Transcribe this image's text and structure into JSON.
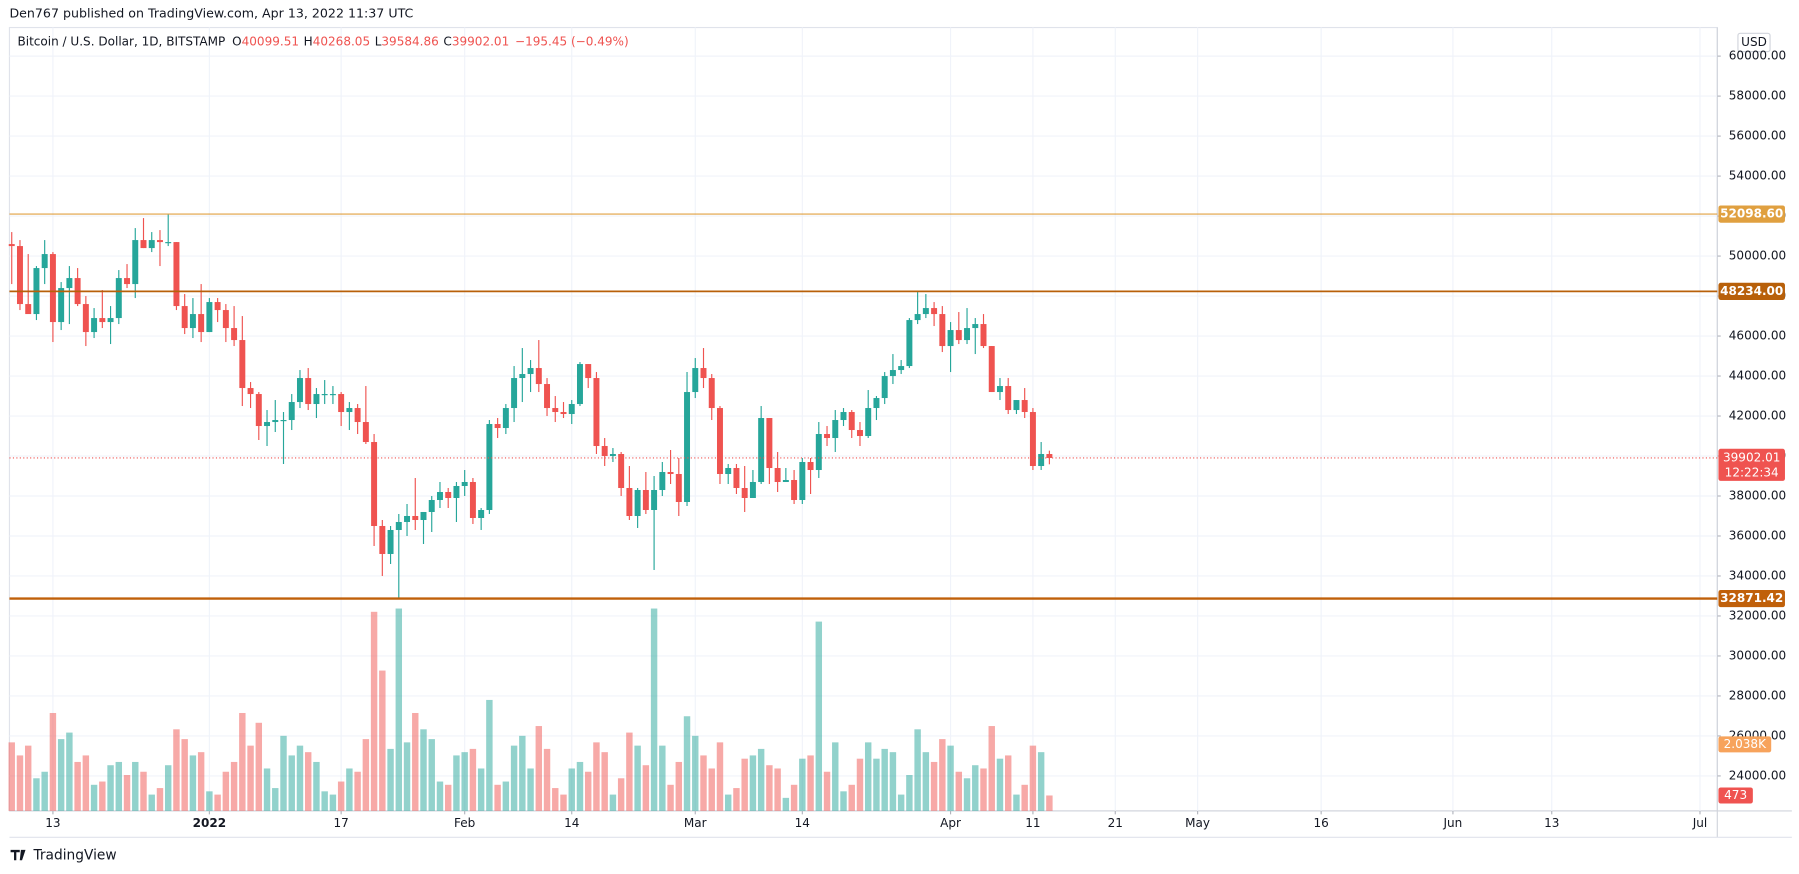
{
  "header": {
    "publisher": "Den767 published on TradingView.com, Apr 13, 2022 11:37 UTC",
    "brand": "TradingView"
  },
  "chart_data": {
    "type": "candlestick",
    "legend": {
      "symbol": "Bitcoin / U.S. Dollar, 1D, BITSTAMP",
      "items": [
        {
          "key": "O",
          "value": "40099.51"
        },
        {
          "key": "H",
          "value": "40268.05"
        },
        {
          "key": "L",
          "value": "39584.86"
        },
        {
          "key": "C",
          "value": "39902.01"
        }
      ],
      "change": "−195.45 (−0.49%)"
    },
    "currency": "USD",
    "up_color": "#26a69a",
    "down_color": "#ef5350",
    "x": [
      "2021-12-08",
      "2021-12-09",
      "2021-12-10",
      "2021-12-11",
      "2021-12-12",
      "2021-12-13",
      "2021-12-14",
      "2021-12-15",
      "2021-12-16",
      "2021-12-17",
      "2021-12-18",
      "2021-12-19",
      "2021-12-20",
      "2021-12-21",
      "2021-12-22",
      "2021-12-23",
      "2021-12-24",
      "2021-12-25",
      "2021-12-26",
      "2021-12-27",
      "2021-12-28",
      "2021-12-29",
      "2021-12-30",
      "2021-12-31",
      "2022-01-01",
      "2022-01-02",
      "2022-01-03",
      "2022-01-04",
      "2022-01-05",
      "2022-01-06",
      "2022-01-07",
      "2022-01-08",
      "2022-01-09",
      "2022-01-10",
      "2022-01-11",
      "2022-01-12",
      "2022-01-13",
      "2022-01-14",
      "2022-01-15",
      "2022-01-16",
      "2022-01-17",
      "2022-01-18",
      "2022-01-19",
      "2022-01-20",
      "2022-01-21",
      "2022-01-22",
      "2022-01-23",
      "2022-01-24",
      "2022-01-25",
      "2022-01-26",
      "2022-01-27",
      "2022-01-28",
      "2022-01-29",
      "2022-01-30",
      "2022-01-31",
      "2022-02-01",
      "2022-02-02",
      "2022-02-03",
      "2022-02-04",
      "2022-02-05",
      "2022-02-06",
      "2022-02-07",
      "2022-02-08",
      "2022-02-09",
      "2022-02-10",
      "2022-02-11",
      "2022-02-12",
      "2022-02-13",
      "2022-02-14",
      "2022-02-15",
      "2022-02-16",
      "2022-02-17",
      "2022-02-18",
      "2022-02-19",
      "2022-02-20",
      "2022-02-21",
      "2022-02-22",
      "2022-02-23",
      "2022-02-24",
      "2022-02-25",
      "2022-02-26",
      "2022-02-27",
      "2022-02-28",
      "2022-03-01",
      "2022-03-02",
      "2022-03-03",
      "2022-03-04",
      "2022-03-05",
      "2022-03-06",
      "2022-03-07",
      "2022-03-08",
      "2022-03-09",
      "2022-03-10",
      "2022-03-11",
      "2022-03-12",
      "2022-03-13",
      "2022-03-14",
      "2022-03-15",
      "2022-03-16",
      "2022-03-17",
      "2022-03-18",
      "2022-03-19",
      "2022-03-20",
      "2022-03-21",
      "2022-03-22",
      "2022-03-23",
      "2022-03-24",
      "2022-03-25",
      "2022-03-26",
      "2022-03-27",
      "2022-03-28",
      "2022-03-29",
      "2022-03-30",
      "2022-03-31",
      "2022-04-01",
      "2022-04-02",
      "2022-04-03",
      "2022-04-04",
      "2022-04-05",
      "2022-04-06",
      "2022-04-07",
      "2022-04-08",
      "2022-04-09",
      "2022-04-10",
      "2022-04-11",
      "2022-04-12",
      "2022-04-13"
    ],
    "open": [
      50600,
      50500,
      47600,
      47100,
      49400,
      50100,
      46700,
      48400,
      48900,
      47600,
      46200,
      46900,
      46700,
      46900,
      48900,
      48600,
      50800,
      50400,
      50800,
      50700,
      50700,
      47500,
      46400,
      47100,
      46200,
      47700,
      47300,
      46400,
      45800,
      43400,
      43100,
      41500,
      41700,
      41800,
      41800,
      42700,
      43900,
      42600,
      43100,
      43100,
      43100,
      42200,
      42400,
      41700,
      40700,
      36500,
      35100,
      36300,
      36700,
      37000,
      36800,
      37200,
      37800,
      38200,
      37900,
      38500,
      38700,
      36900,
      37300,
      41600,
      41400,
      42400,
      43900,
      44100,
      44400,
      43600,
      42400,
      42200,
      42100,
      42600,
      44600,
      43900,
      40500,
      40000,
      40100,
      38400,
      37000,
      38300,
      37300,
      38300,
      39200,
      39100,
      37700,
      43200,
      44400,
      43900,
      42400,
      39100,
      39400,
      38400,
      37900,
      38700,
      41900,
      39400,
      38700,
      38800,
      37800,
      39700,
      39300,
      41100,
      40900,
      41800,
      42200,
      41300,
      41000,
      42400,
      42900,
      44000,
      44300,
      44500,
      46800,
      47100,
      47400,
      47100,
      45500,
      46300,
      45800,
      46400,
      46600,
      45500,
      43200,
      43500,
      42300,
      42800,
      42200,
      39500,
      40099.51
    ],
    "high": [
      51200,
      50800,
      50100,
      49500,
      50800,
      50200,
      48700,
      49500,
      49400,
      48000,
      47400,
      48300,
      47500,
      49300,
      49600,
      51400,
      51900,
      51200,
      51300,
      52100,
      50700,
      48100,
      47900,
      48600,
      47900,
      47900,
      47600,
      47500,
      47000,
      43700,
      43200,
      42300,
      42800,
      42200,
      43100,
      44300,
      44400,
      43400,
      43800,
      43500,
      43200,
      42700,
      42600,
      43500,
      41100,
      36800,
      36500,
      37100,
      37600,
      38900,
      37200,
      38000,
      38700,
      38400,
      38700,
      39300,
      38900,
      37400,
      41800,
      41900,
      42600,
      44500,
      45400,
      44800,
      45800,
      43900,
      43000,
      42700,
      42800,
      44700,
      44600,
      44200,
      40900,
      40400,
      40200,
      39500,
      38400,
      39200,
      39000,
      39700,
      40300,
      39900,
      44200,
      44900,
      45400,
      44100,
      42500,
      39600,
      39600,
      39500,
      39300,
      42500,
      41900,
      40200,
      39400,
      39300,
      39900,
      39900,
      41700,
      41500,
      42300,
      42400,
      42300,
      41700,
      43300,
      43000,
      44200,
      45100,
      44800,
      46900,
      48200,
      48100,
      47700,
      47500,
      46700,
      47200,
      47400,
      46900,
      47100,
      45500,
      43900,
      43900,
      42800,
      43400,
      42400,
      40700,
      40268.05
    ],
    "low": [
      48600,
      47300,
      47300,
      46800,
      48600,
      45700,
      46300,
      46600,
      47500,
      45500,
      45900,
      46400,
      45600,
      46600,
      48400,
      47900,
      50400,
      50200,
      49500,
      50500,
      47300,
      46100,
      45900,
      45700,
      46200,
      46700,
      45700,
      45500,
      42500,
      42400,
      40800,
      40500,
      41200,
      39600,
      41300,
      42400,
      42300,
      41900,
      42600,
      42600,
      41500,
      41300,
      41100,
      40600,
      35500,
      34000,
      34600,
      32900,
      36000,
      36300,
      35600,
      36200,
      37400,
      37400,
      36700,
      38000,
      36600,
      36300,
      37100,
      40900,
      41100,
      41700,
      42700,
      43200,
      43200,
      42000,
      41700,
      41900,
      41600,
      42500,
      43400,
      40100,
      39500,
      39700,
      38000,
      36800,
      36400,
      37100,
      34300,
      38000,
      38600,
      37000,
      37500,
      42900,
      43400,
      41800,
      38600,
      38600,
      38100,
      37200,
      37900,
      38600,
      38600,
      38200,
      38700,
      37600,
      37600,
      38100,
      38900,
      40500,
      40200,
      41500,
      40900,
      40500,
      40900,
      41800,
      42600,
      43600,
      44100,
      44400,
      46600,
      46900,
      46500,
      45200,
      44200,
      45600,
      45600,
      45100,
      45400,
      43200,
      42800,
      42100,
      42100,
      41900,
      39300,
      39300,
      39584.86
    ],
    "close": [
      50500,
      47600,
      47100,
      49400,
      50100,
      46700,
      48400,
      48900,
      47600,
      46200,
      46900,
      46700,
      46900,
      48900,
      48600,
      50800,
      50400,
      50800,
      50700,
      50700,
      47500,
      46400,
      47100,
      46200,
      47700,
      47300,
      46400,
      45800,
      43400,
      43100,
      41500,
      41700,
      41800,
      41800,
      42700,
      43900,
      42600,
      43100,
      43100,
      43100,
      42200,
      42400,
      41700,
      40700,
      36500,
      35100,
      36300,
      36700,
      37000,
      36800,
      37200,
      37800,
      38200,
      37900,
      38500,
      38700,
      36900,
      37300,
      41600,
      41400,
      42400,
      43900,
      44100,
      44400,
      43600,
      42400,
      42200,
      42100,
      42600,
      44600,
      43900,
      40500,
      40000,
      40100,
      38400,
      37000,
      38300,
      37300,
      38300,
      39200,
      39100,
      37700,
      43200,
      44400,
      43900,
      42400,
      39100,
      39400,
      38400,
      37900,
      38700,
      41900,
      39400,
      38700,
      38800,
      37800,
      39700,
      39300,
      41100,
      40900,
      41800,
      42200,
      41300,
      41000,
      42400,
      42900,
      44000,
      44300,
      44500,
      46800,
      47100,
      47400,
      47100,
      45500,
      46300,
      45800,
      46400,
      46600,
      45500,
      43200,
      43500,
      42300,
      42800,
      42200,
      39500,
      40100,
      39902.01
    ],
    "volume": [
      2100,
      1700,
      2000,
      1000,
      1200,
      3000,
      2200,
      2400,
      1500,
      1700,
      800,
      900,
      1400,
      1500,
      1100,
      1500,
      1200,
      500,
      700,
      1400,
      2500,
      2200,
      1700,
      1800,
      600,
      500,
      1200,
      1500,
      3000,
      2000,
      2700,
      1300,
      700,
      2300,
      1700,
      2000,
      1800,
      1500,
      600,
      500,
      900,
      1300,
      1200,
      2200,
      6100,
      4300,
      1900,
      6200,
      2100,
      3000,
      2500,
      2200,
      900,
      800,
      1700,
      1800,
      1900,
      1300,
      3400,
      800,
      900,
      2000,
      2300,
      1300,
      2600,
      1900,
      700,
      500,
      1300,
      1500,
      1200,
      2100,
      1800,
      500,
      1000,
      2400,
      2000,
      1400,
      6200,
      2000,
      800,
      1500,
      2900,
      2300,
      1700,
      1300,
      2100,
      500,
      700,
      1600,
      1700,
      1900,
      1400,
      1300,
      400,
      800,
      1600,
      1700,
      5800,
      1200,
      2100,
      600,
      800,
      1600,
      2100,
      1600,
      1900,
      1800,
      500,
      1100,
      2500,
      1800,
      1500,
      2200,
      2000,
      1200,
      1000,
      1400,
      1300,
      2600,
      1600,
      1700,
      500,
      800,
      2000,
      1800,
      473
    ],
    "ylim": [
      22250,
      61430
    ],
    "volume_ylim": [
      0,
      24000
    ],
    "yticks": [
      {
        "value": 24000,
        "label": "24000.00"
      },
      {
        "value": 26000,
        "label": "26000.00"
      },
      {
        "value": 28000,
        "label": "28000.00"
      },
      {
        "value": 30000,
        "label": "30000.00"
      },
      {
        "value": 32000,
        "label": "32000.00"
      },
      {
        "value": 34000,
        "label": "34000.00"
      },
      {
        "value": 36000,
        "label": "36000.00"
      },
      {
        "value": 38000,
        "label": "38000.00"
      },
      {
        "value": 40000,
        "label": "40000.00"
      },
      {
        "value": 42000,
        "label": "42000.00"
      },
      {
        "value": 44000,
        "label": "44000.00"
      },
      {
        "value": 46000,
        "label": "46000.00"
      },
      {
        "value": 48000,
        "label": "48000.00"
      },
      {
        "value": 50000,
        "label": "50000.00"
      },
      {
        "value": 52000,
        "label": "52000.00"
      },
      {
        "value": 54000,
        "label": "54000.00"
      },
      {
        "value": 56000,
        "label": "56000.00"
      },
      {
        "value": 58000,
        "label": "58000.00"
      },
      {
        "value": 60000,
        "label": "60000.00"
      }
    ],
    "xticks": [
      {
        "value": "2021-12-13",
        "label": "13"
      },
      {
        "value": "2022-01-01",
        "label": "2022"
      },
      {
        "value": "2022-01-17",
        "label": "17"
      },
      {
        "value": "2022-02-01",
        "label": "Feb"
      },
      {
        "value": "2022-02-14",
        "label": "14"
      },
      {
        "value": "2022-03-01",
        "label": "Mar"
      },
      {
        "value": "2022-03-14",
        "label": "14"
      },
      {
        "value": "2022-04-01",
        "label": "Apr"
      },
      {
        "value": "2022-04-11",
        "label": "11"
      },
      {
        "value": "2022-04-21",
        "label": "21"
      },
      {
        "value": "2022-05-01",
        "label": "May"
      },
      {
        "value": "2022-05-16",
        "label": "16"
      },
      {
        "value": "2022-06-01",
        "label": "Jun"
      },
      {
        "value": "2022-06-13",
        "label": "13"
      },
      {
        "value": "2022-07-01",
        "label": "Jul"
      }
    ],
    "grid": true,
    "levels": [
      {
        "value": 52098.6,
        "label": "52098.60",
        "color": "#e0a040",
        "width": 1
      },
      {
        "value": 48234,
        "label": "48234.00",
        "color": "#b8600a",
        "width": 1.6
      },
      {
        "value": 32871.42,
        "label": "32871.42",
        "color": "#c0600a",
        "width": 2
      }
    ],
    "last_price": {
      "value": 39902.01,
      "countdown": "12:22:34",
      "color": "#ef5350"
    },
    "volume_ma_label": {
      "value": 2038,
      "label": "2.038K",
      "color": "#f7a35c"
    },
    "last_volume_label": {
      "value": 473,
      "color": "#ef5350"
    }
  }
}
